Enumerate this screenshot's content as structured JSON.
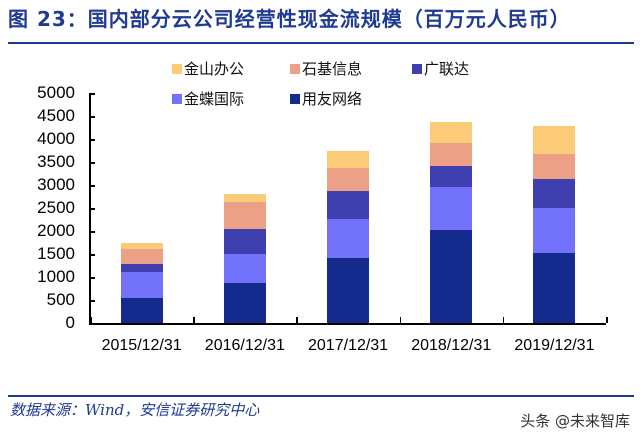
{
  "header": {
    "title": "图 23：国内部分云公司经营性现金流规模（百万元人民币）"
  },
  "footer": {
    "source": "数据来源：Wind，安信证券研究中心",
    "watermark": "头条 @未来智库"
  },
  "colors": {
    "金山办公": "#fbcb7a",
    "石基信息": "#eca085",
    "广联达": "#3f3fb0",
    "金蝶国际": "#7272fb",
    "用友网络": "#142a8c"
  },
  "chart_data": {
    "type": "bar",
    "stacked": true,
    "title": "国内部分云公司经营性现金流规模（百万元人民币）",
    "xlabel": "",
    "ylabel": "",
    "ylim": [
      0,
      5000
    ],
    "yticks": [
      0,
      500,
      1000,
      1500,
      2000,
      2500,
      3000,
      3500,
      4000,
      4500,
      5000
    ],
    "grid": false,
    "legend_position": "top",
    "legend": [
      "金山办公",
      "石基信息",
      "广联达",
      "金蝶国际",
      "用友网络"
    ],
    "categories": [
      "2015/12/31",
      "2016/12/31",
      "2017/12/31",
      "2018/12/31",
      "2019/12/31"
    ],
    "series": [
      {
        "name": "用友网络",
        "color": "#142a8c",
        "values": [
          535,
          880,
          1420,
          2030,
          1530
        ]
      },
      {
        "name": "金蝶国际",
        "color": "#7272fb",
        "values": [
          580,
          625,
          835,
          925,
          960
        ]
      },
      {
        "name": "广联达",
        "color": "#3f3fb0",
        "values": [
          160,
          535,
          620,
          460,
          645
        ]
      },
      {
        "name": "石基信息",
        "color": "#eca085",
        "values": [
          340,
          595,
          490,
          490,
          535
        ]
      },
      {
        "name": "金山办公",
        "color": "#fbcb7a",
        "values": [
          115,
          160,
          375,
          455,
          615
        ]
      }
    ]
  }
}
